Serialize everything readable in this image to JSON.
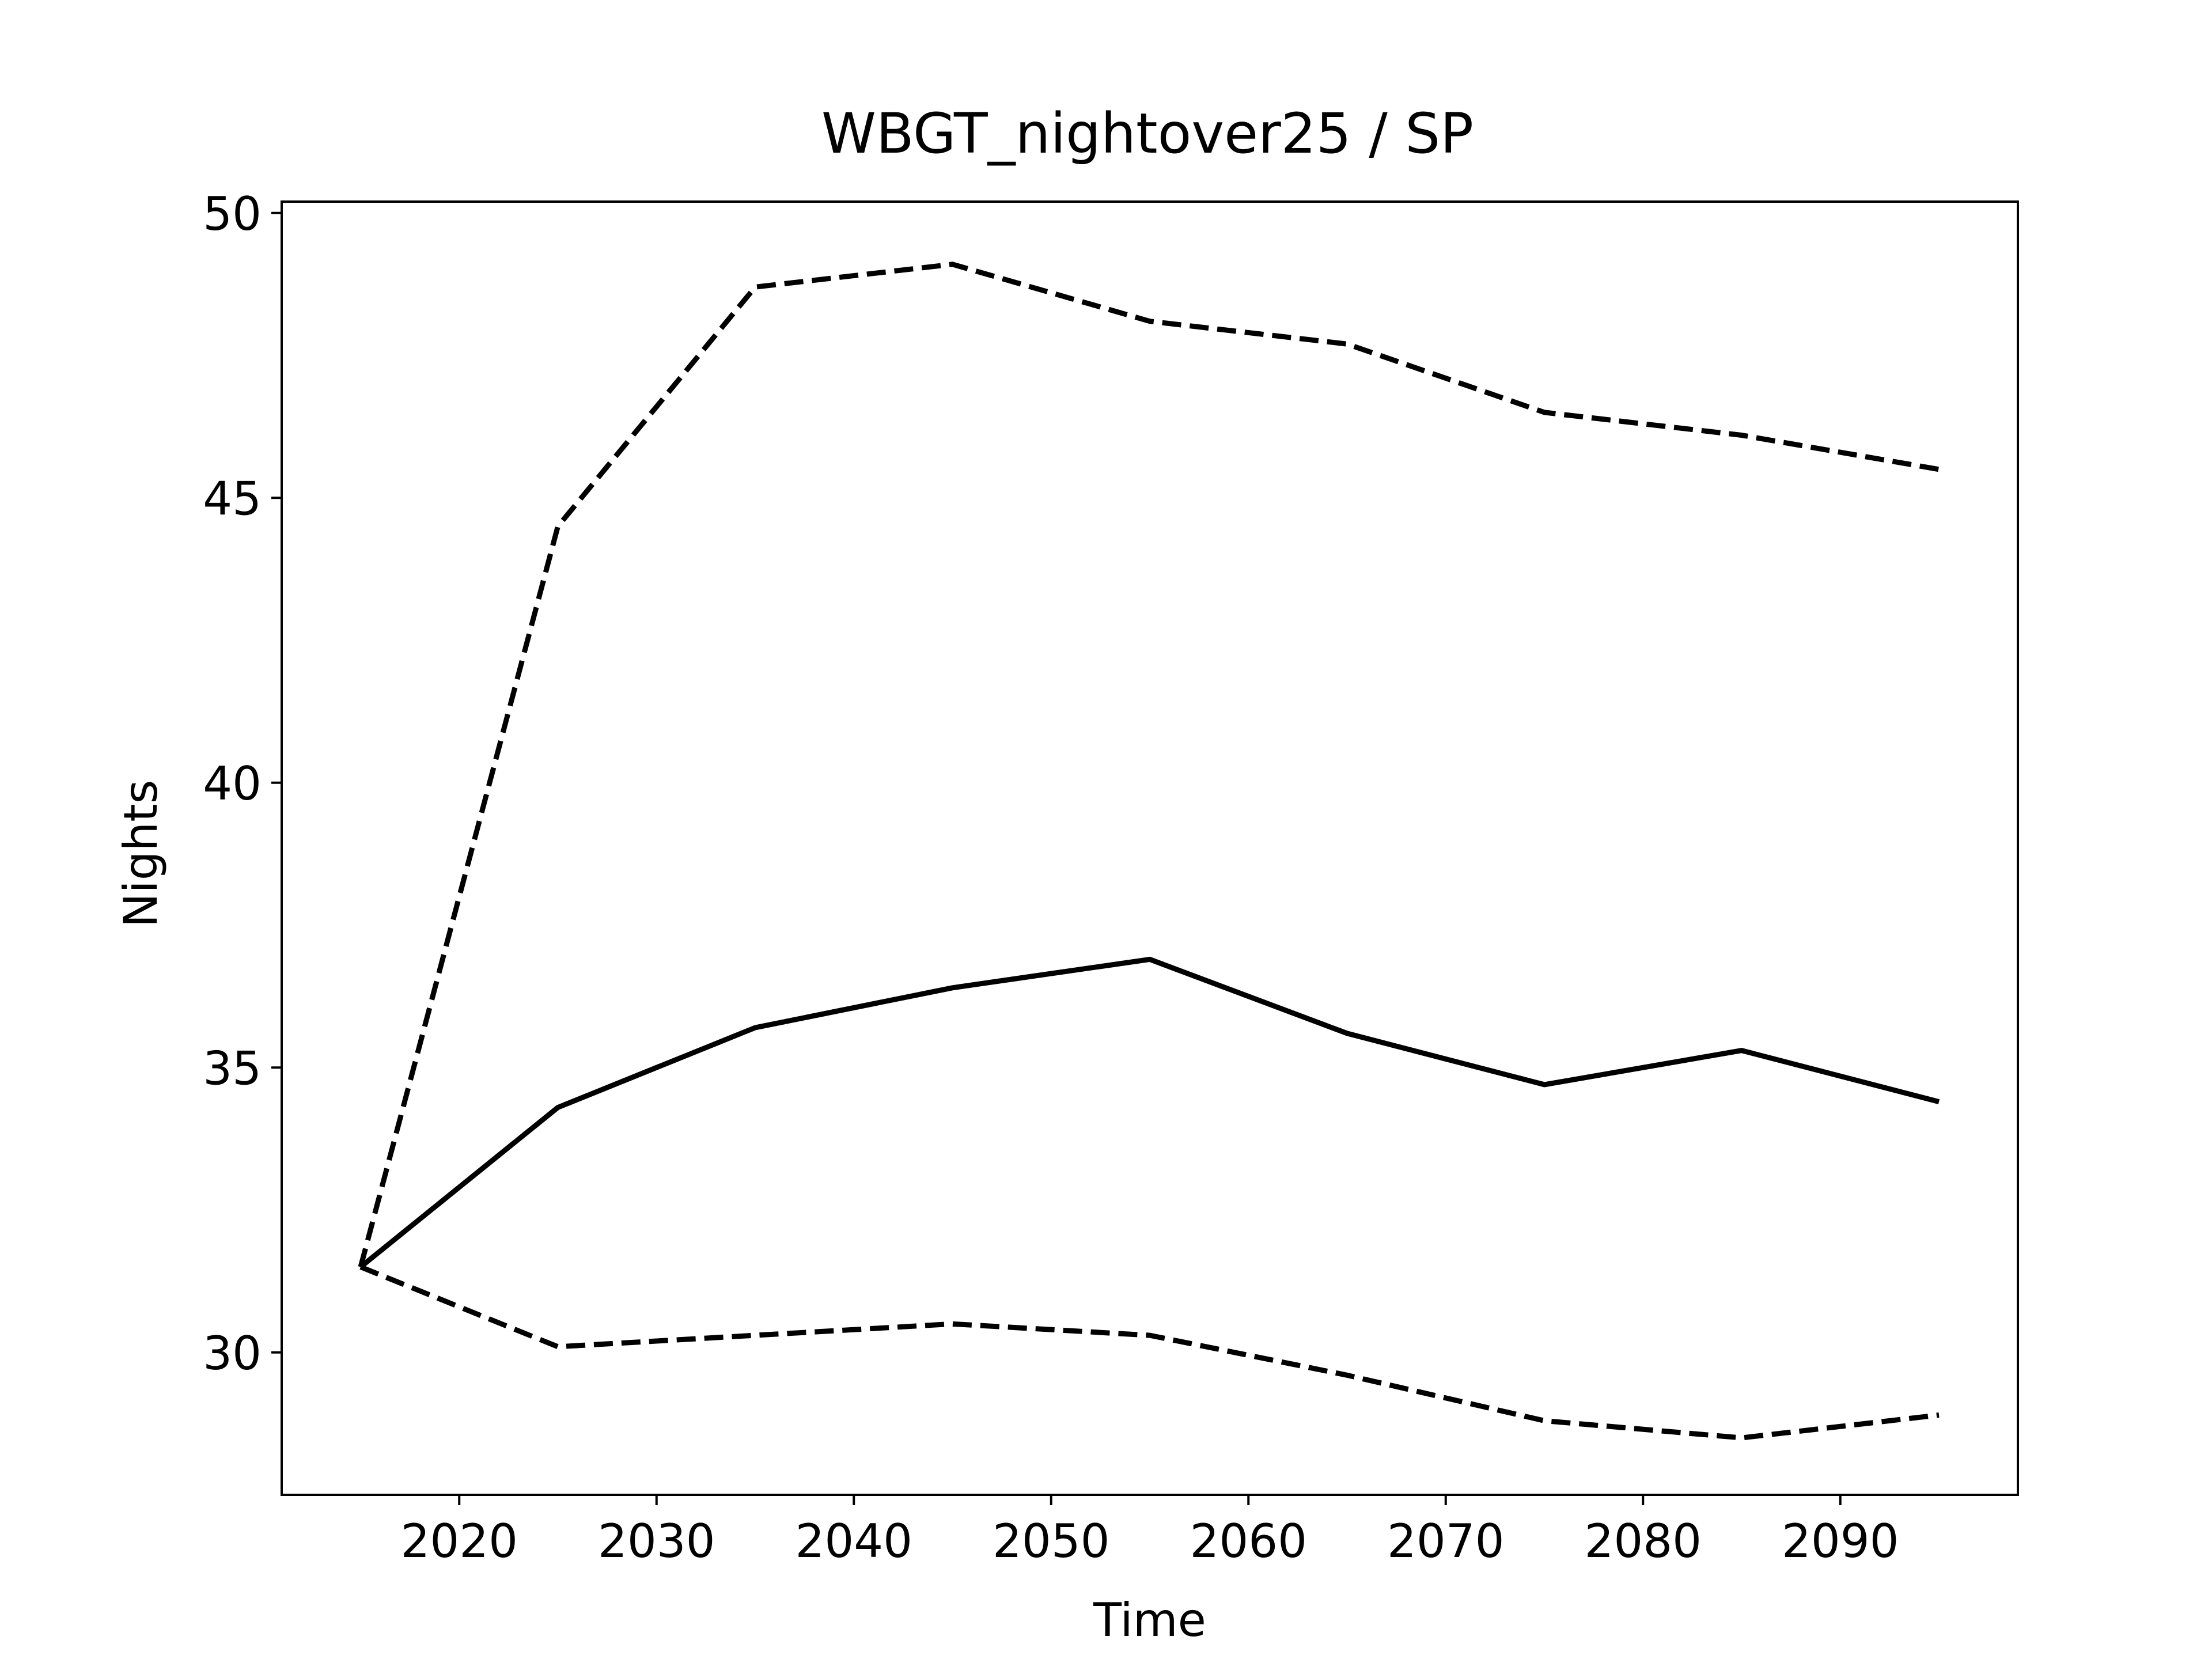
{
  "chart_data": {
    "type": "line",
    "title": "WBGT_nightover25 / SP",
    "xlabel": "Time",
    "ylabel": "Nights",
    "xlim": [
      2011,
      2099
    ],
    "ylim": [
      27.5,
      50.2
    ],
    "xticks": [
      2020,
      2030,
      2040,
      2050,
      2060,
      2070,
      2080,
      2090
    ],
    "yticks": [
      30,
      35,
      40,
      45,
      50
    ],
    "grid": false,
    "legend": "none",
    "x": [
      2015,
      2025,
      2035,
      2045,
      2055,
      2065,
      2075,
      2085,
      2095
    ],
    "series": [
      {
        "style": "dashed",
        "values": [
          31.5,
          44.5,
          48.7,
          49.1,
          48.1,
          47.7,
          46.5,
          46.1,
          45.5
        ]
      },
      {
        "style": "solid",
        "values": [
          31.5,
          34.3,
          35.7,
          36.4,
          36.9,
          35.6,
          34.7,
          35.3,
          34.4
        ]
      },
      {
        "style": "dashed",
        "values": [
          31.5,
          30.1,
          30.3,
          30.5,
          30.3,
          29.6,
          28.8,
          28.5,
          28.9
        ]
      }
    ]
  }
}
